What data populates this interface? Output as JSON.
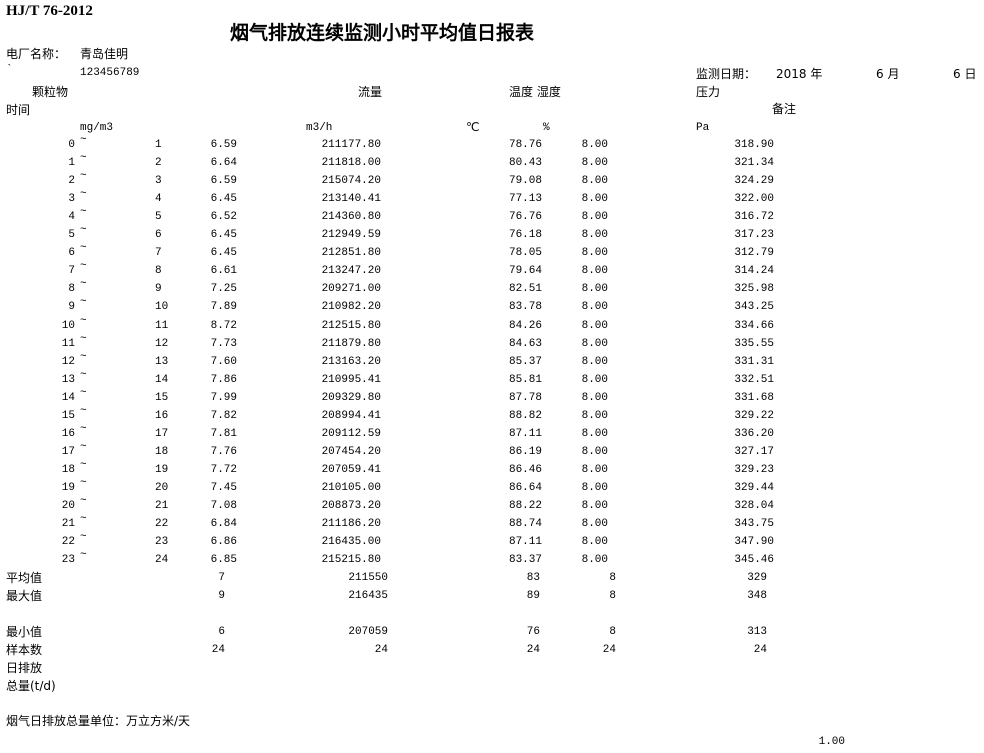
{
  "header": {
    "standard": "HJ/T 76-2012",
    "title": "烟气排放连续监测小时平均值日报表",
    "plant_label": "电厂名称：",
    "plant_name": "青岛佳明",
    "backtick": "`",
    "plant_code": "123456789",
    "date_label": "监测日期：",
    "year": "2018 年",
    "month": "6 月",
    "day": "6 日"
  },
  "columns": {
    "particulate": "颗粒物",
    "flow": "流量",
    "temp_humidity": "温度 湿度",
    "pressure": "压力",
    "remarks": "备注",
    "time": "时间",
    "unit_particulate": "mg/m3",
    "unit_flow": "m3/h",
    "unit_temp": "℃",
    "unit_humidity": "%",
    "unit_pressure": "Pa"
  },
  "tilde": "~",
  "rows": [
    [
      "0",
      "1",
      "6.59",
      "211177.80",
      "78.76",
      "8.00",
      "318.90"
    ],
    [
      "1",
      "2",
      "6.64",
      "211818.00",
      "80.43",
      "8.00",
      "321.34"
    ],
    [
      "2",
      "3",
      "6.59",
      "215074.20",
      "79.08",
      "8.00",
      "324.29"
    ],
    [
      "3",
      "4",
      "6.45",
      "213140.41",
      "77.13",
      "8.00",
      "322.00"
    ],
    [
      "4",
      "5",
      "6.52",
      "214360.80",
      "76.76",
      "8.00",
      "316.72"
    ],
    [
      "5",
      "6",
      "6.45",
      "212949.59",
      "76.18",
      "8.00",
      "317.23"
    ],
    [
      "6",
      "7",
      "6.45",
      "212851.80",
      "78.05",
      "8.00",
      "312.79"
    ],
    [
      "7",
      "8",
      "6.61",
      "213247.20",
      "79.64",
      "8.00",
      "314.24"
    ],
    [
      "8",
      "9",
      "7.25",
      "209271.00",
      "82.51",
      "8.00",
      "325.98"
    ],
    [
      "9",
      "10",
      "7.89",
      "210982.20",
      "83.78",
      "8.00",
      "343.25"
    ],
    [
      "10",
      "11",
      "8.72",
      "212515.80",
      "84.26",
      "8.00",
      "334.66"
    ],
    [
      "11",
      "12",
      "7.73",
      "211879.80",
      "84.63",
      "8.00",
      "335.55"
    ],
    [
      "12",
      "13",
      "7.60",
      "213163.20",
      "85.37",
      "8.00",
      "331.31"
    ],
    [
      "13",
      "14",
      "7.86",
      "210995.41",
      "85.81",
      "8.00",
      "332.51"
    ],
    [
      "14",
      "15",
      "7.99",
      "209329.80",
      "87.78",
      "8.00",
      "331.68"
    ],
    [
      "15",
      "16",
      "7.82",
      "208994.41",
      "88.82",
      "8.00",
      "329.22"
    ],
    [
      "16",
      "17",
      "7.81",
      "209112.59",
      "87.11",
      "8.00",
      "336.20"
    ],
    [
      "17",
      "18",
      "7.76",
      "207454.20",
      "86.19",
      "8.00",
      "327.17"
    ],
    [
      "18",
      "19",
      "7.72",
      "207059.41",
      "86.46",
      "8.00",
      "329.23"
    ],
    [
      "19",
      "20",
      "7.45",
      "210105.00",
      "86.64",
      "8.00",
      "329.44"
    ],
    [
      "20",
      "21",
      "7.08",
      "208873.20",
      "88.22",
      "8.00",
      "328.04"
    ],
    [
      "21",
      "22",
      "6.84",
      "211186.20",
      "88.74",
      "8.00",
      "343.75"
    ],
    [
      "22",
      "23",
      "6.86",
      "216435.00",
      "87.11",
      "8.00",
      "347.90"
    ],
    [
      "23",
      "24",
      "6.85",
      "215215.80",
      "83.37",
      "8.00",
      "345.46"
    ]
  ],
  "summary": [
    {
      "label": "平均值",
      "values": [
        "7",
        "211550",
        "83",
        "8",
        "329"
      ]
    },
    {
      "label": "最大值",
      "values": [
        "9",
        "216435",
        "89",
        "8",
        "348"
      ]
    },
    {
      "label": "最小值",
      "values": [
        "6",
        "207059",
        "76",
        "8",
        "313"
      ]
    },
    {
      "label": "样本数",
      "values": [
        "24",
        "24",
        "24",
        "24",
        "24"
      ]
    }
  ],
  "daily_emission_label_1": "日排放",
  "daily_emission_label_2": "总量(t/d)",
  "footnote": "烟气日排放总量单位：万立方米/天",
  "footer_value": "1.00"
}
